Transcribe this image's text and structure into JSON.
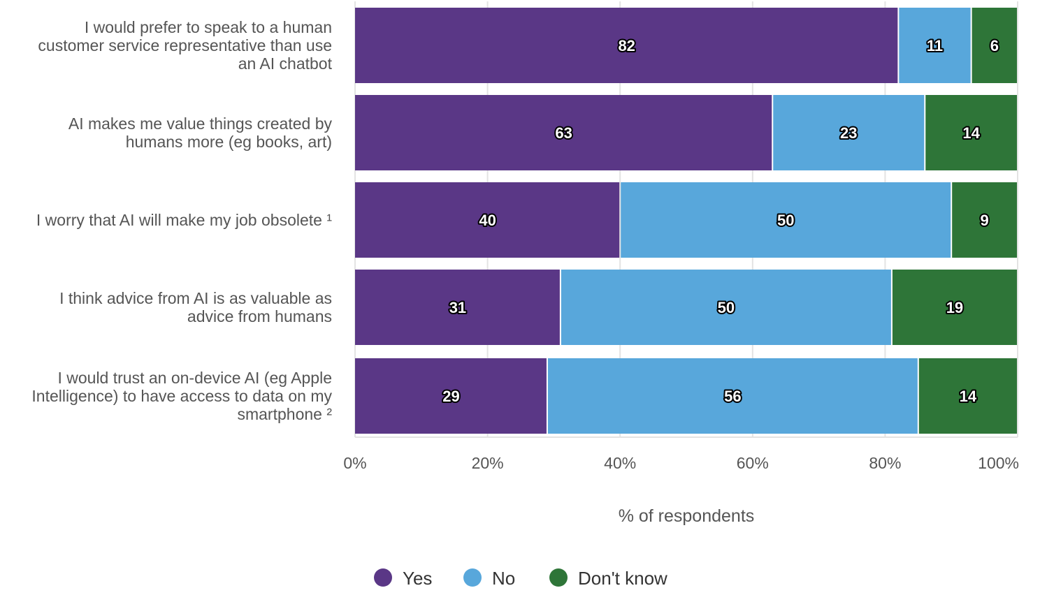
{
  "chart_data": {
    "type": "bar",
    "orientation": "horizontal",
    "stacked": true,
    "categories": [
      [
        "I would prefer to speak to a human",
        "customer service representative than use",
        "an AI chatbot"
      ],
      [
        "AI makes me value things created by",
        "humans more (eg books, art)"
      ],
      [
        "I worry that AI will make my job obsolete ¹"
      ],
      [
        "I think advice from AI is as valuable as",
        "advice from humans"
      ],
      [
        "I would trust an on-device AI (eg Apple",
        "Intelligence) to have access to data on my",
        "smartphone ²"
      ]
    ],
    "series": [
      {
        "name": "Yes",
        "color": "#5a3786",
        "values": [
          82,
          63,
          40,
          31,
          29
        ]
      },
      {
        "name": "No",
        "color": "#58a7db",
        "values": [
          11,
          23,
          50,
          50,
          56
        ]
      },
      {
        "name": "Don't know",
        "color": "#2e7538",
        "values": [
          6,
          14,
          9,
          19,
          14
        ]
      }
    ],
    "xlim": [
      0,
      100
    ],
    "xticks": [
      0,
      20,
      40,
      60,
      80,
      100
    ],
    "xtick_labels": [
      "0%",
      "20%",
      "40%",
      "60%",
      "80%",
      "100%"
    ],
    "xlabel": "% of respondents",
    "ylabel": "",
    "grid": true,
    "legend_position": "bottom"
  }
}
